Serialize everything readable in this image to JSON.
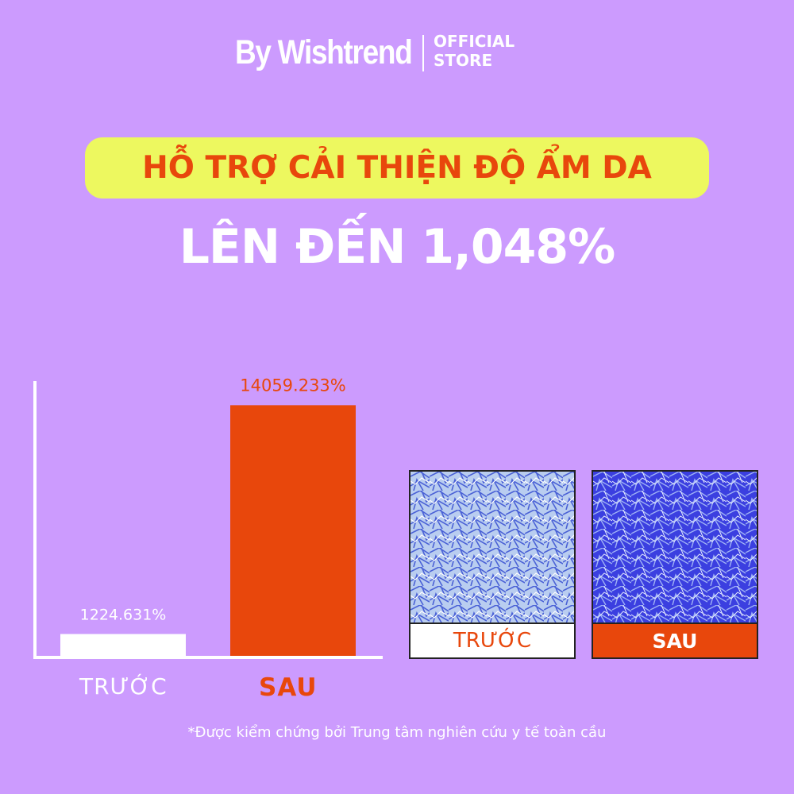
{
  "brand": {
    "name": "By Wishtrend",
    "sub_line1": "OFFICIAL",
    "sub_line2": "STORE"
  },
  "headline": "HỖ TRỢ CẢI THIỆN ĐỘ ẨM DA",
  "subheadline": "LÊN ĐẾN 1,048%",
  "colors": {
    "background": "#cc9bfe",
    "accent": "#e8470c",
    "highlight": "#edf85f",
    "before_bar": "#ffffff"
  },
  "chart_data": {
    "type": "bar",
    "categories": [
      "TRƯỚC",
      "SAU"
    ],
    "values": [
      1224.631,
      14059.233
    ],
    "value_labels": [
      "1224.631%",
      "14059.233%"
    ],
    "bar_colors": [
      "#ffffff",
      "#e8470c"
    ],
    "title": "",
    "xlabel": "",
    "ylabel": "",
    "ylim": [
      0,
      15500
    ],
    "grid": false
  },
  "photos": [
    {
      "caption": "TRƯỚC",
      "texture": "light-blue-skin-texture"
    },
    {
      "caption": "SAU",
      "texture": "dark-blue-skin-texture"
    }
  ],
  "footnote": "*Được kiểm chứng bởi Trung tâm nghiên cứu y tế toàn cầu"
}
